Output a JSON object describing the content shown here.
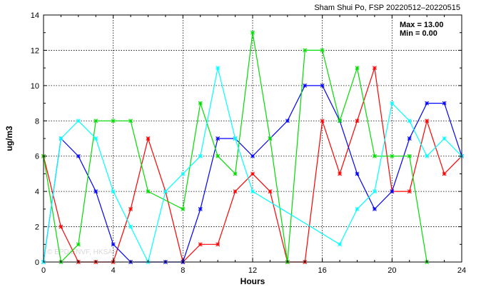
{
  "chart_data": {
    "type": "line",
    "title": "Sham Shui Po, FSP 20220512–20220515",
    "xlabel": "Hours",
    "ylabel": "ug/m3",
    "xlim": [
      0,
      24
    ],
    "ylim": [
      0,
      14
    ],
    "x_ticks": [
      0,
      4,
      8,
      12,
      16,
      20,
      24
    ],
    "y_ticks": [
      0,
      2,
      4,
      6,
      8,
      10,
      12,
      14
    ],
    "grid": true,
    "stats": {
      "max": "Max = 13.00",
      "min": "Min =  0.00"
    },
    "watermark": "© EPD/ENVF, HKSAR",
    "series": [
      {
        "color": "#ff0000",
        "points": [
          [
            0,
            6
          ],
          [
            1,
            2
          ],
          [
            2,
            0
          ],
          [
            3,
            0
          ],
          [
            4,
            0
          ],
          [
            5,
            3
          ],
          [
            6,
            7
          ],
          [
            7,
            4
          ],
          [
            8,
            0
          ],
          [
            9,
            1
          ],
          [
            10,
            1
          ],
          [
            11,
            4
          ],
          [
            12,
            5
          ],
          [
            13,
            4
          ],
          [
            14,
            0
          ],
          [
            15,
            0
          ],
          [
            16,
            8
          ],
          [
            17,
            5
          ],
          [
            18,
            8
          ],
          [
            19,
            11
          ],
          [
            20,
            4
          ],
          [
            21,
            4
          ],
          [
            22,
            8
          ],
          [
            23,
            5
          ],
          [
            24,
            6
          ]
        ]
      },
      {
        "color": "#0000ff",
        "points": [
          [
            0,
            0
          ],
          [
            1,
            7
          ],
          [
            2,
            6
          ],
          [
            3,
            4
          ],
          [
            4,
            1
          ],
          [
            5,
            0
          ],
          [
            7,
            0
          ],
          [
            8,
            0
          ],
          [
            9,
            3
          ],
          [
            10,
            7
          ],
          [
            11,
            7
          ],
          [
            12,
            6
          ],
          [
            13,
            7
          ],
          [
            14,
            8
          ],
          [
            15,
            10
          ],
          [
            16,
            10
          ],
          [
            17,
            8
          ],
          [
            18,
            5
          ],
          [
            19,
            3
          ],
          [
            20,
            4
          ],
          [
            21,
            7
          ],
          [
            22,
            9
          ],
          [
            23,
            9
          ],
          [
            24,
            6
          ]
        ]
      },
      {
        "color": "#00dd00",
        "points": [
          [
            0,
            6
          ],
          [
            1,
            0
          ],
          [
            2,
            1
          ],
          [
            3,
            8
          ],
          [
            4,
            8
          ],
          [
            5,
            8
          ],
          [
            6,
            4
          ],
          [
            8,
            3
          ],
          [
            9,
            9
          ],
          [
            10,
            6
          ],
          [
            11,
            5
          ],
          [
            12,
            13
          ],
          [
            13,
            7
          ],
          [
            14,
            0
          ],
          [
            15,
            12
          ],
          [
            16,
            12
          ],
          [
            17,
            8
          ],
          [
            18,
            11
          ],
          [
            19,
            6
          ],
          [
            20,
            6
          ],
          [
            21,
            6
          ],
          [
            22,
            0
          ]
        ]
      },
      {
        "color": "#00ffff",
        "points": [
          [
            0,
            0
          ],
          [
            1,
            7
          ],
          [
            2,
            8
          ],
          [
            3,
            7
          ],
          [
            4,
            4
          ],
          [
            5,
            2
          ],
          [
            6,
            0
          ],
          [
            7,
            4
          ],
          [
            8,
            5
          ],
          [
            9,
            6
          ],
          [
            10,
            11
          ],
          [
            11,
            7
          ],
          [
            12,
            4
          ],
          [
            17,
            1
          ],
          [
            18,
            3
          ],
          [
            19,
            4
          ],
          [
            20,
            9
          ],
          [
            21,
            8
          ],
          [
            22,
            6
          ],
          [
            23,
            7
          ],
          [
            24,
            6
          ]
        ]
      }
    ]
  }
}
